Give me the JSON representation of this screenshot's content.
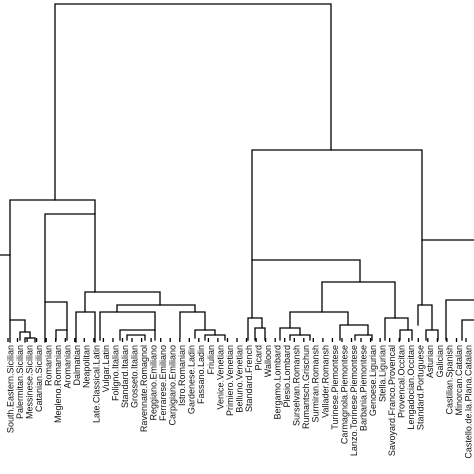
{
  "diagram": {
    "type": "dendrogram",
    "line_color": "#000000",
    "leaves": [
      "South.Eastern.Sicilian",
      "Palermitan.Sicilian",
      "Messinese.Sicilian",
      "Catanian.Sicilian",
      "Romanian",
      "Megleno.Romanian",
      "Aromanian",
      "Dalmatian",
      "Neapolitan",
      "Late.Classical.Latin",
      "Vulgar.Latin",
      "Foligno.Italian",
      "Standard.Italian",
      "Grosseto.Italian",
      "Ravennate.Romagnol",
      "Reggiano.Emiliano",
      "Ferrarese.Emiliano",
      "Carpigiano.Emiliano",
      "Istro.Romanian",
      "Gardenese.Ladin",
      "Fassano.Ladin",
      "Friulian",
      "Venice.Venetian",
      "Primiero.Venetian",
      "Belluno.Venetian",
      "Standard.French",
      "Picard",
      "Walloon",
      "Bergamo.Lombard",
      "Plesio.Lombard",
      "Surselvan.Romansh",
      "Rumantsch.Grischun",
      "Surmiran.Romansh",
      "Vallader.Romansh",
      "Turinese.Piemontese",
      "Carmagnola.Piemontese",
      "Lanzo.Torinese.Piemontese",
      "Barbania.Piemontese",
      "Genoese.Ligurian",
      "Stella.Ligurian",
      "Savoyard.Franco.Provencal",
      "Provencal.Occitan",
      "Lengadocian.Occitan",
      "Standard.Portuguese",
      "Asturian",
      "Galician",
      "Castilian.Spanish",
      "Minorcan.Catalan",
      "Castello.de.la.Plana.Catalan"
    ]
  }
}
